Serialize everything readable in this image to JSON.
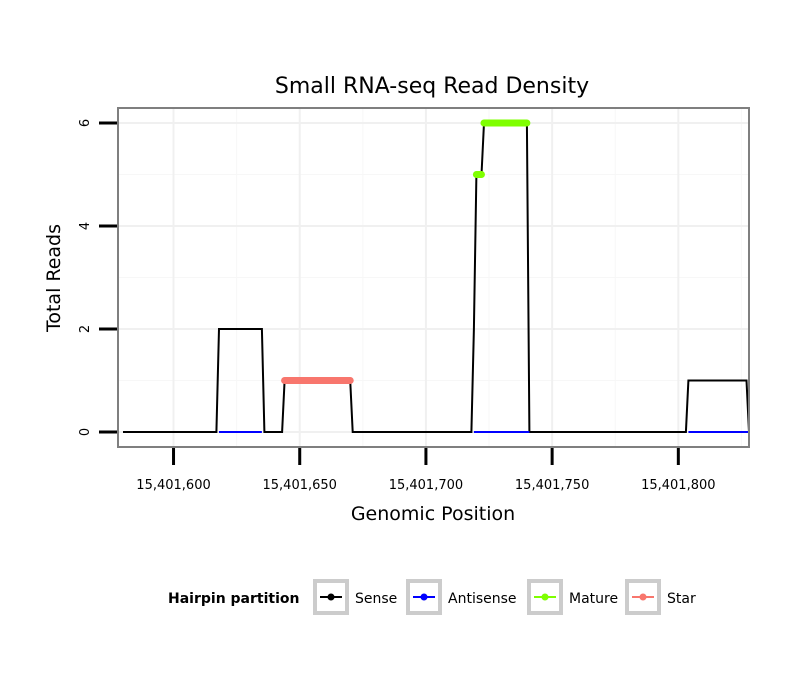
{
  "chart_data": {
    "type": "line",
    "title": "Small RNA-seq Read Density",
    "xlabel": "Genomic Position",
    "ylabel": "Total Reads",
    "xlim": [
      15401578,
      15401828
    ],
    "ylim": [
      0,
      6.2
    ],
    "x_ticks": [
      15401600,
      15401650,
      15401700,
      15401750,
      15401800
    ],
    "x_tick_labels": [
      "15,401,600",
      "15,401,650",
      "15,401,700",
      "15,401,750",
      "15,401,800"
    ],
    "y_ticks": [
      0,
      2,
      4,
      6
    ],
    "y_tick_labels": [
      "0",
      "2",
      "4",
      "6"
    ],
    "grid": true,
    "series": [
      {
        "name": "Sense",
        "color": "#000000",
        "points": [
          [
            15401580,
            0
          ],
          [
            15401617,
            0
          ],
          [
            15401618,
            2
          ],
          [
            15401635,
            2
          ],
          [
            15401636,
            0
          ],
          [
            15401643,
            0
          ],
          [
            15401644,
            1
          ],
          [
            15401670,
            1
          ],
          [
            15401671,
            0
          ],
          [
            15401718,
            0
          ],
          [
            15401719,
            2
          ],
          [
            15401720,
            5
          ],
          [
            15401722,
            5
          ],
          [
            15401723,
            6
          ],
          [
            15401740,
            6
          ],
          [
            15401741,
            0
          ],
          [
            15401803,
            0
          ],
          [
            15401804,
            1
          ],
          [
            15401827,
            1
          ],
          [
            15401828,
            0
          ]
        ]
      },
      {
        "name": "Antisense",
        "color": "#0000ff",
        "points": [
          [
            15401618,
            0
          ],
          [
            15401635,
            0
          ],
          [
            15401719,
            0
          ],
          [
            15401741,
            0
          ],
          [
            15401804,
            0
          ],
          [
            15401828,
            0
          ]
        ]
      },
      {
        "name": "Mature",
        "color": "#7fff00",
        "points": [
          [
            15401720,
            5
          ],
          [
            15401722,
            5
          ],
          [
            15401723,
            6
          ],
          [
            15401740,
            6
          ]
        ]
      },
      {
        "name": "Star",
        "color": "#f8766d",
        "points": [
          [
            15401644,
            1
          ],
          [
            15401670,
            1
          ]
        ]
      }
    ],
    "legend": {
      "title": "Hairpin partition",
      "position": "bottom",
      "entries": [
        {
          "label": "Sense",
          "color": "#000000"
        },
        {
          "label": "Antisense",
          "color": "#0000ff"
        },
        {
          "label": "Mature",
          "color": "#7fff00"
        },
        {
          "label": "Star",
          "color": "#f8766d"
        }
      ]
    }
  }
}
